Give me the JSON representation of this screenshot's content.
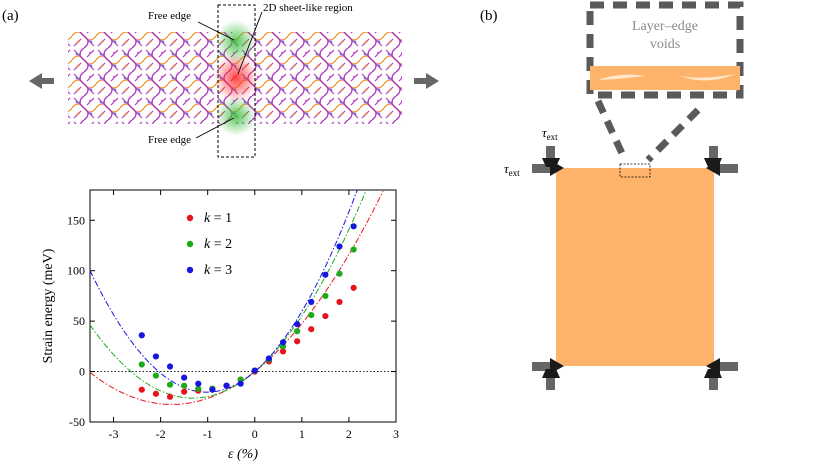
{
  "panel_a": {
    "label": "(a)",
    "top": {
      "free_edge_upper": "Free edge",
      "free_edge_lower": "Free edge",
      "sheet_region": "2D sheet-like region"
    }
  },
  "panel_b": {
    "label": "(b)",
    "inset_text_line1": "Layer–edge",
    "inset_text_line2": "voids",
    "tau_symbol": "τ",
    "tau_subscript": "ext"
  },
  "colors": {
    "k1": "#e8141b",
    "k2": "#1aab1a",
    "k3": "#1616e0",
    "slab": "#fdb46a",
    "arrow": "#666666",
    "lattice_magenta": "#b02cc0",
    "lattice_orange": "#f0902a",
    "lattice_blue": "#6b7fd8"
  },
  "chart_data": {
    "type": "scatter",
    "xlabel": "ε (%)",
    "ylabel": "Strain energy (meV)",
    "xlim": [
      -3.5,
      3
    ],
    "ylim": [
      -50,
      180
    ],
    "xticks": [
      "-3",
      "-2",
      "-1",
      "0",
      "1",
      "2",
      "3"
    ],
    "yticks": [
      "-50",
      "0",
      "50",
      "100",
      "150"
    ],
    "zero_line": true,
    "grid": false,
    "legend_position": "top-center",
    "series": [
      {
        "name": "k = 1",
        "label_var": "k",
        "label_rest": " = 1",
        "color_key": "k1",
        "points": [
          [
            -2.4,
            -18
          ],
          [
            -2.1,
            -22
          ],
          [
            -1.8,
            -25
          ],
          [
            -1.5,
            -20
          ],
          [
            -1.2,
            -19
          ],
          [
            -0.9,
            -17
          ],
          [
            -0.6,
            -14
          ],
          [
            -0.3,
            -8
          ],
          [
            0.0,
            0
          ],
          [
            0.3,
            10
          ],
          [
            0.6,
            20
          ],
          [
            0.9,
            30
          ],
          [
            1.2,
            42
          ],
          [
            1.5,
            55
          ],
          [
            1.8,
            69
          ],
          [
            2.1,
            83
          ]
        ],
        "fit": {
          "a": 10.5,
          "b": 37.0
        }
      },
      {
        "name": "k = 2",
        "label_var": "k",
        "label_rest": " = 2",
        "color_key": "k2",
        "points": [
          [
            -2.4,
            7
          ],
          [
            -2.1,
            -4
          ],
          [
            -1.8,
            -13
          ],
          [
            -1.5,
            -14
          ],
          [
            -1.2,
            -17
          ],
          [
            -0.9,
            -17
          ],
          [
            -0.6,
            -14
          ],
          [
            -0.3,
            -8
          ],
          [
            0.0,
            1
          ],
          [
            0.3,
            12
          ],
          [
            0.6,
            25
          ],
          [
            0.9,
            40
          ],
          [
            1.2,
            56
          ],
          [
            1.5,
            75
          ],
          [
            1.8,
            97
          ],
          [
            2.1,
            121
          ]
        ],
        "fit": {
          "a": 15.2,
          "b": 40.0
        }
      },
      {
        "name": "k = 3",
        "label_var": "k",
        "label_rest": " = 3",
        "color_key": "k3",
        "points": [
          [
            -2.4,
            36
          ],
          [
            -2.1,
            15
          ],
          [
            -1.8,
            5
          ],
          [
            -1.5,
            -6
          ],
          [
            -1.2,
            -12
          ],
          [
            -0.9,
            -18
          ],
          [
            -0.6,
            -14
          ],
          [
            -0.3,
            -12
          ],
          [
            0.0,
            1
          ],
          [
            0.3,
            13
          ],
          [
            0.6,
            29
          ],
          [
            0.9,
            47
          ],
          [
            1.2,
            69
          ],
          [
            1.5,
            96
          ],
          [
            1.8,
            124
          ],
          [
            2.1,
            144
          ]
        ],
        "fit": {
          "a": 19.6,
          "b": 40.0
        }
      }
    ]
  }
}
